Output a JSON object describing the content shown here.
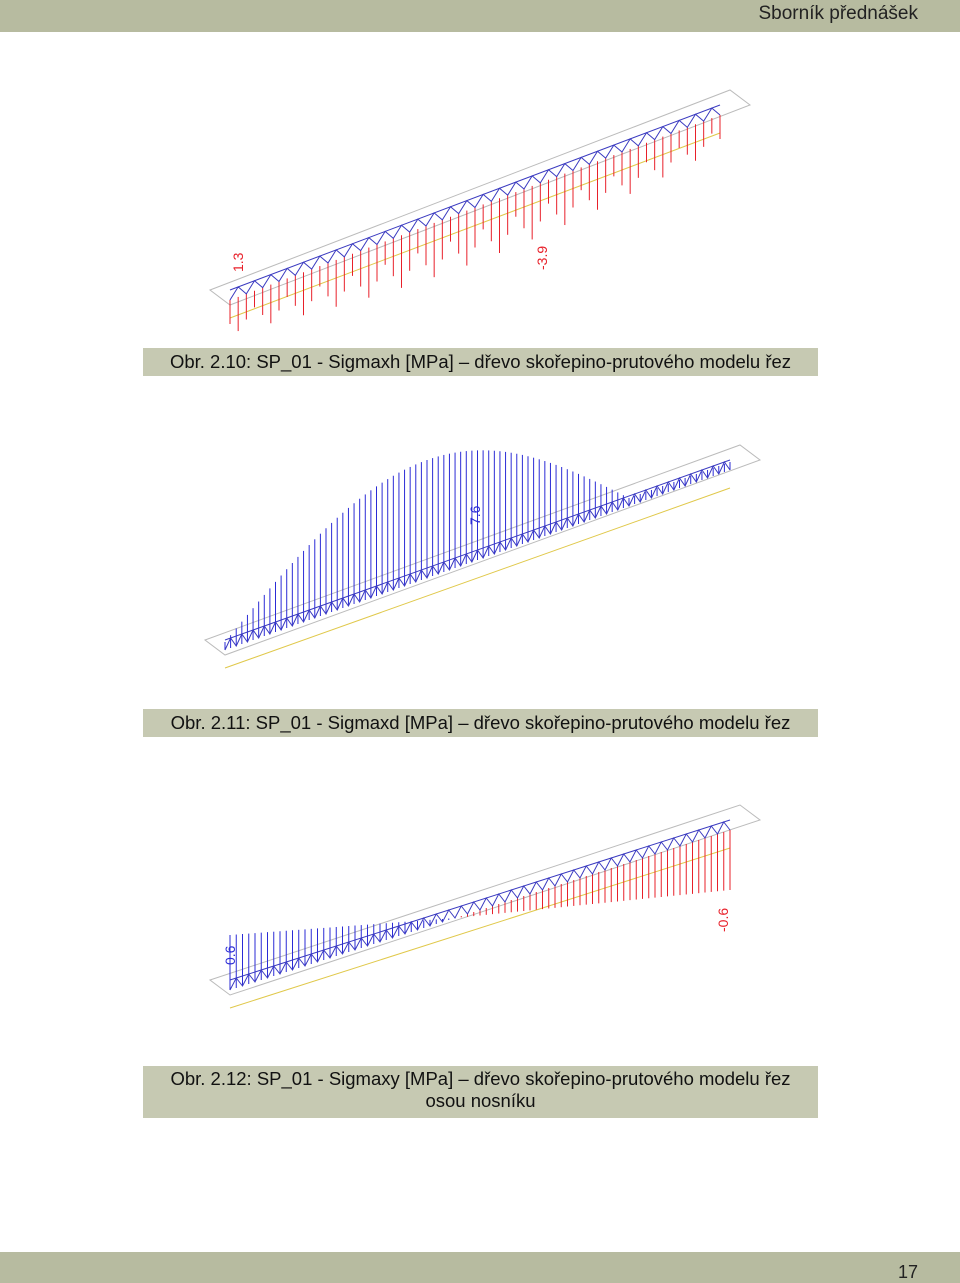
{
  "header": {
    "title": "Sborník přednášek"
  },
  "figures": [
    {
      "caption": "Obr. 2.10: SP_01 - Sigmaxh [MPa] – dřevo skořepino-prutového modelu řez",
      "labels": [
        "1.3",
        "-3.9"
      ],
      "color": "#e8202a"
    },
    {
      "caption": "Obr. 2.11: SP_01 - Sigmaxd [MPa] – dřevo skořepino-prutového modelu řez",
      "labels": [
        "7.6"
      ],
      "color": "#2b2bd6"
    },
    {
      "caption_line1": "Obr. 2.12: SP_01 - Sigmaxy [MPa] – dřevo skořepino-prutového modelu řez",
      "caption_line2": "osou nosníku",
      "labels": [
        "0.6",
        "-0.6"
      ],
      "colors": [
        "#2b2bd6",
        "#e8202a"
      ]
    }
  ],
  "footer": {
    "page_number": "17"
  }
}
